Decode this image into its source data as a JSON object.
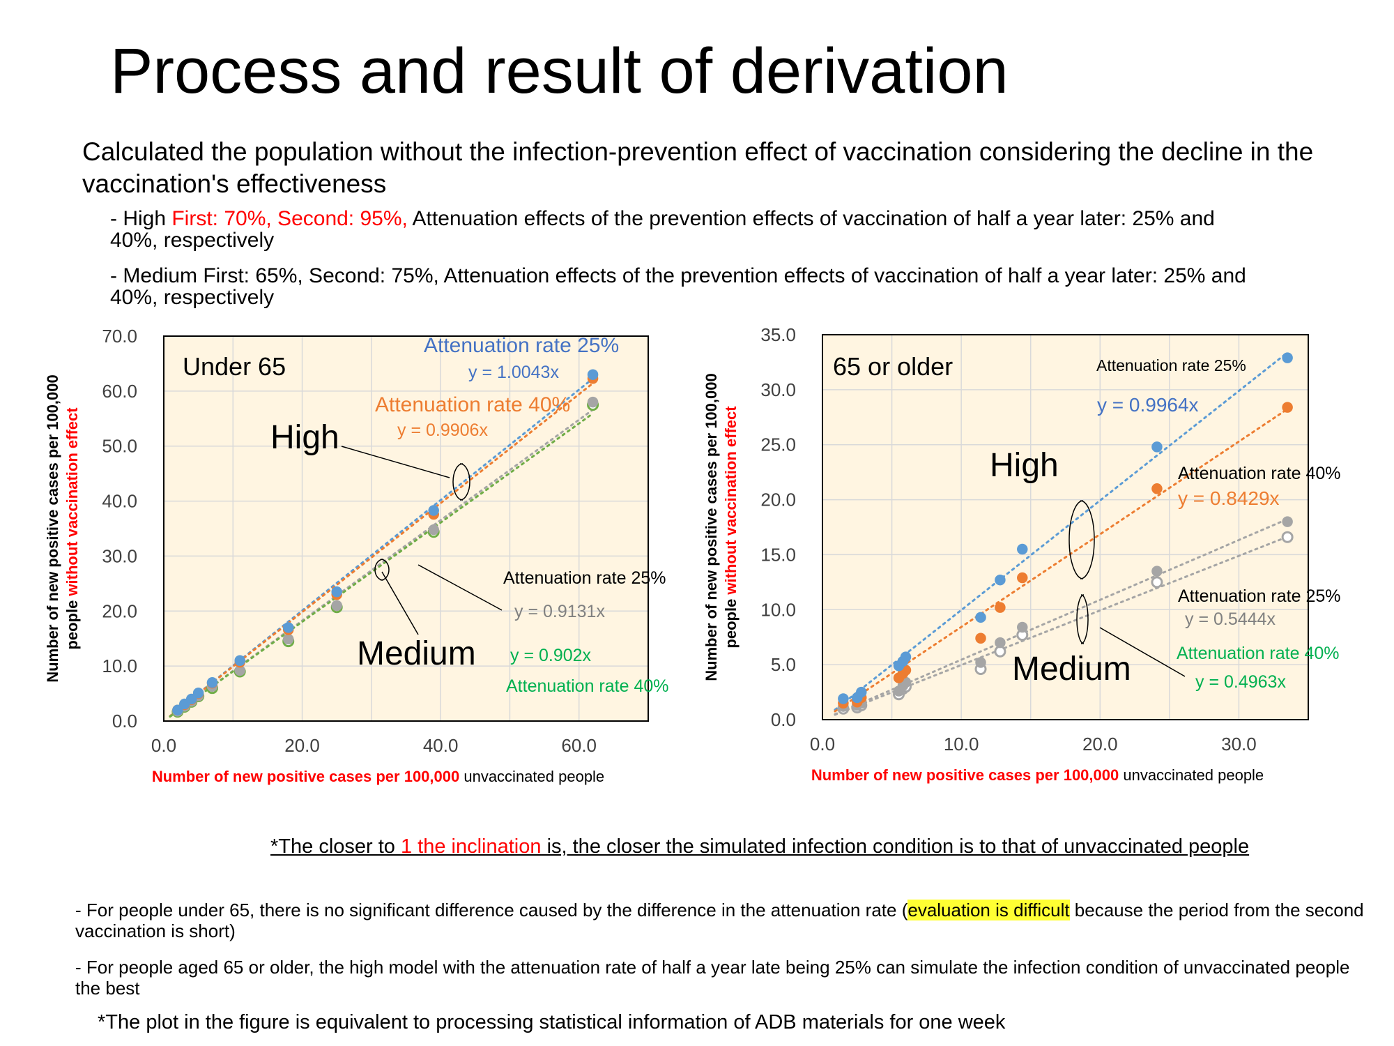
{
  "page": {
    "title": "Process and result of derivation",
    "subtitle": "Calculated the population without the infection-prevention effect of vaccination considering the decline in the vaccination's effectiveness",
    "bullets": {
      "high": {
        "pre": "- High ",
        "red": "First: 70%, Second: 95%,",
        "post": " Attenuation effects of the prevention effects of vaccination of half a year later: 25% and 40%, respectively"
      },
      "medium": {
        "text": "- Medium First: 65%, Second: 75%, Attenuation effects of the prevention effects of vaccination of half a year later: 25% and 40%, respectively"
      }
    },
    "note_closer": {
      "pre": "*The closer to ",
      "red": "1 the inclination",
      "post": " is, the closer the simulated infection condition is to that of unvaccinated people"
    },
    "observation1": {
      "pre": "- For people under 65, there is no significant difference caused by the difference in the attenuation rate (",
      "highlight": "evaluation is difficult",
      "post": " because the period from the second vaccination is short)"
    },
    "observation2": "- For people aged 65 or older, the high model with the attenuation rate of half a year late being 25% can simulate the infection condition of unvaccinated people the best",
    "note_plot": "*The plot in the figure is equivalent to processing statistical information of ADB materials for one week"
  },
  "colors": {
    "blue": "#5b9bd5",
    "orange": "#ed7d31",
    "gray": "#a5a5a5",
    "green": "#70ad47",
    "plot_bg": "#fff5e1",
    "label_blue": "#4472c4",
    "label_green": "#00b050",
    "red": "#ff0000"
  },
  "chart_data": [
    {
      "type": "scatter",
      "panel_label": "Under 65",
      "xlim": [
        0,
        70
      ],
      "ylim": [
        0,
        70
      ],
      "x_ticks": [
        "0.0",
        "20.0",
        "40.0",
        "60.0"
      ],
      "y_ticks": [
        "0.0",
        "10.0",
        "20.0",
        "30.0",
        "40.0",
        "50.0",
        "60.0",
        "70.0"
      ],
      "xlabel": {
        "red": "Number of new positive cases per 100,000",
        "black": " unvaccinated people"
      },
      "ylabel": {
        "line1": "Number of new positive cases per 100,000",
        "line2_black": "people ",
        "line2_red": "without vaccination effect"
      },
      "group_labels": {
        "high": "High",
        "medium": "Medium"
      },
      "grid": true,
      "x": [
        2.0,
        3.0,
        4.0,
        5.0,
        7.0,
        11.0,
        18.0,
        25.0,
        39.0,
        62.0
      ],
      "series": [
        {
          "key": "high25",
          "label": "Attenuation rate 25%",
          "equation": "y = 1.0043x",
          "slope": 1.0043,
          "color": "#5b9bd5",
          "hollow": false,
          "y": [
            2.0,
            3.1,
            4.0,
            5.1,
            7.0,
            11.0,
            17.0,
            23.5,
            38.3,
            63.0
          ]
        },
        {
          "key": "high40",
          "label": "Attenuation rate 40%",
          "equation": "y = 0.9906x",
          "slope": 0.9906,
          "color": "#ed7d31",
          "hollow": false,
          "y": [
            2.0,
            3.0,
            3.9,
            5.0,
            6.9,
            10.7,
            16.6,
            23.0,
            37.6,
            62.3
          ]
        },
        {
          "key": "med25",
          "label": "Attenuation rate 25%",
          "equation": "y = 0.9131x",
          "slope": 0.9131,
          "color": "#a5a5a5",
          "hollow": false,
          "y": [
            1.8,
            2.7,
            3.6,
            4.6,
            6.3,
            9.2,
            14.9,
            21.0,
            34.8,
            58.0
          ]
        },
        {
          "key": "med40",
          "label": "Attenuation rate 40%",
          "equation": "y = 0.902x",
          "slope": 0.902,
          "color": "#70ad47",
          "hollow": true,
          "y": [
            1.7,
            2.6,
            3.5,
            4.5,
            6.0,
            9.0,
            14.5,
            20.7,
            34.4,
            57.5
          ]
        }
      ]
    },
    {
      "type": "scatter",
      "panel_label": "65 or older",
      "xlim": [
        0,
        35
      ],
      "ylim": [
        0,
        35
      ],
      "x_ticks": [
        "0.0",
        "10.0",
        "20.0",
        "30.0"
      ],
      "y_ticks": [
        "0.0",
        "5.0",
        "10.0",
        "15.0",
        "20.0",
        "25.0",
        "30.0",
        "35.0"
      ],
      "xlabel": {
        "red": "Number of new positive cases per 100,000",
        "black": " unvaccinated people"
      },
      "ylabel": {
        "line1": "Number of new positive cases per 100,000",
        "line2_black": "people ",
        "line2_red": "without vaccination effect"
      },
      "group_labels": {
        "high": "High",
        "medium": "Medium"
      },
      "grid": true,
      "x": [
        1.5,
        2.5,
        2.8,
        5.5,
        5.8,
        6.0,
        11.4,
        12.8,
        14.4,
        24.1,
        33.5
      ],
      "series": [
        {
          "key": "high25",
          "label": "Attenuation rate 25%",
          "equation": "y = 0.9964x",
          "slope": 0.9964,
          "color": "#5b9bd5",
          "hollow": false,
          "y": [
            1.9,
            2.0,
            2.5,
            4.9,
            5.3,
            5.7,
            9.3,
            12.7,
            15.5,
            24.8,
            32.9
          ]
        },
        {
          "key": "high40",
          "label": "Attenuation rate 40%",
          "equation": "y = 0.8429x",
          "slope": 0.8429,
          "color": "#ed7d31",
          "hollow": false,
          "y": [
            1.5,
            1.6,
            2.0,
            3.8,
            4.2,
            4.5,
            7.4,
            10.2,
            12.9,
            21.0,
            28.4
          ]
        },
        {
          "key": "med25",
          "label": "Attenuation rate 25%",
          "equation": "y = 0.5444x",
          "slope": 0.5444,
          "color": "#a5a5a5",
          "hollow": false,
          "y": [
            1.2,
            1.3,
            1.5,
            2.6,
            3.1,
            3.4,
            5.2,
            7.0,
            8.4,
            13.5,
            18.0
          ]
        },
        {
          "key": "med40",
          "label": "Attenuation rate 40%",
          "equation": "y = 0.4963x",
          "slope": 0.4963,
          "color": "#a5a5a5",
          "hollow": true,
          "y": [
            1.0,
            1.1,
            1.3,
            2.3,
            2.8,
            3.0,
            4.6,
            6.2,
            7.7,
            12.5,
            16.6
          ]
        }
      ]
    }
  ]
}
